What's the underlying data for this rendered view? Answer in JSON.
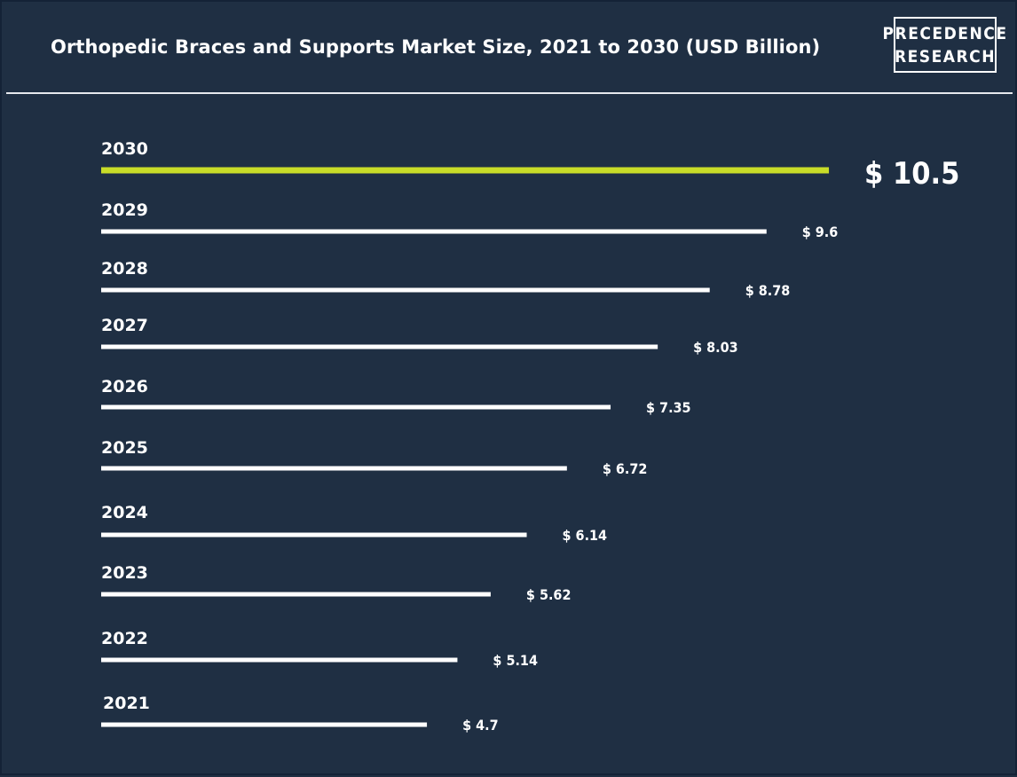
{
  "logo": {
    "line1": "PRECEDENCE",
    "line2": "RESEARCH"
  },
  "chart_data": {
    "type": "bar",
    "orientation": "horizontal",
    "title": "Orthopedic Braces and Supports Market Size, 2021 to 2030 (USD Billion)",
    "categories": [
      "2030",
      "2029",
      "2028",
      "2027",
      "2026",
      "2025",
      "2024",
      "2023",
      "2022",
      "2021"
    ],
    "values": [
      10.5,
      9.6,
      8.78,
      8.03,
      7.35,
      6.72,
      6.14,
      5.62,
      5.14,
      4.7
    ],
    "value_labels": [
      "$ 10.5",
      "$ 9.6",
      "$ 8.78",
      "$ 8.03",
      "$ 7.35",
      "$ 6.72",
      "$ 6.14",
      "$ 5.62",
      "$ 5.14",
      "$ 4.7"
    ],
    "highlight_category": "2030",
    "colors": {
      "background": "#1f2f43",
      "bar": "#ffffff",
      "highlight_bar": "#c8dc28",
      "text": "#ffffff"
    },
    "grid": false,
    "legend": "none"
  }
}
